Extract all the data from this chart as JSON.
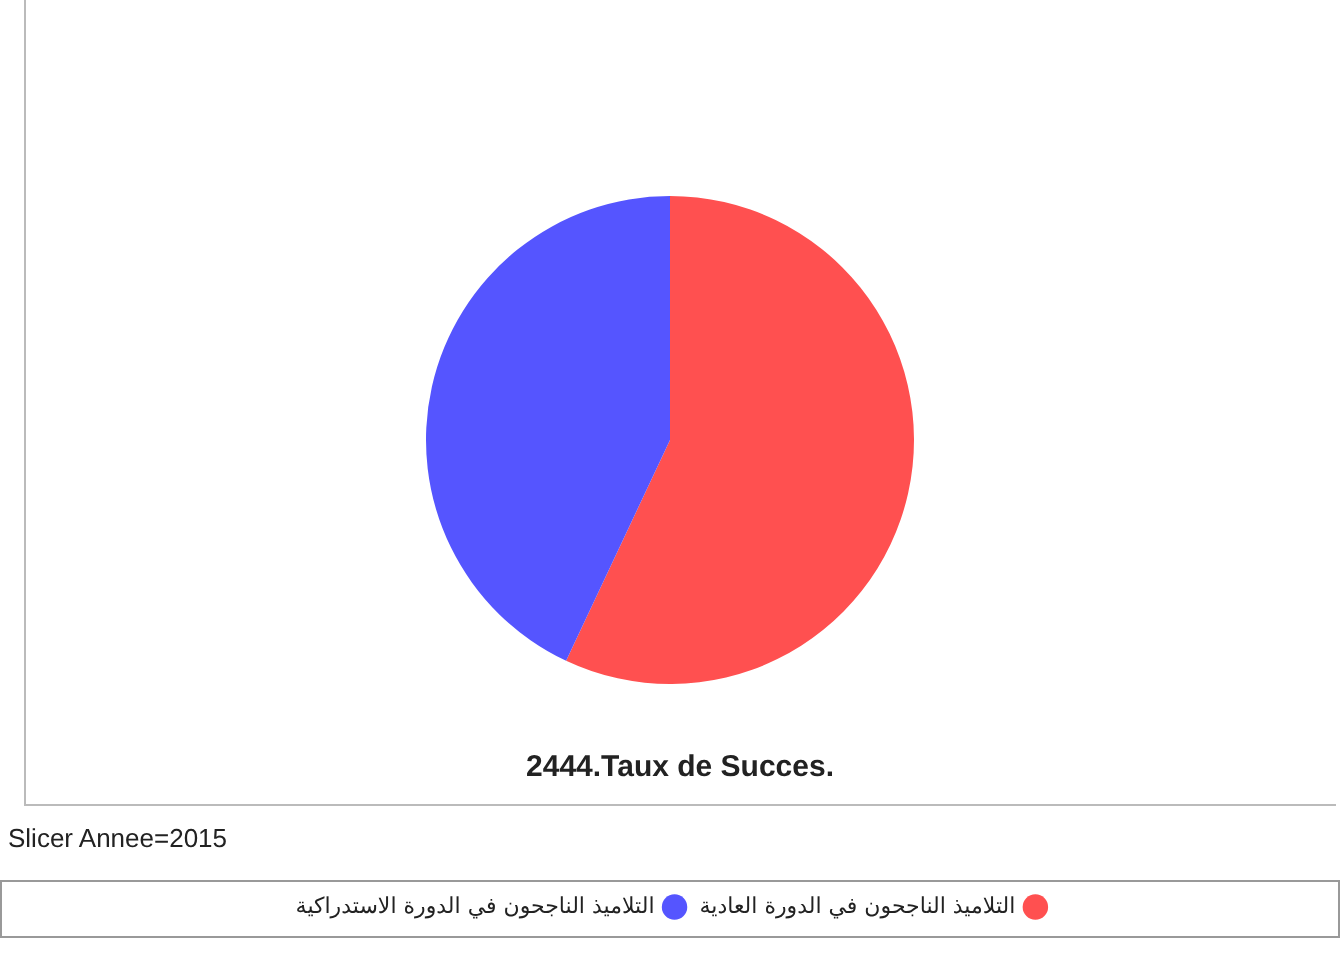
{
  "chart_data": {
    "type": "pie",
    "title": "2444.Taux de Succes.",
    "annotations": [
      "Slicer Annee=2015"
    ],
    "categories": [
      "التلاميذ الناجحون في الدورة العادية",
      "التلاميذ الناجحون في الدورة الاستدراكية"
    ],
    "values": [
      57,
      43
    ],
    "colors": [
      "#ff5050",
      "#5555ff"
    ],
    "legend": "bottom"
  }
}
